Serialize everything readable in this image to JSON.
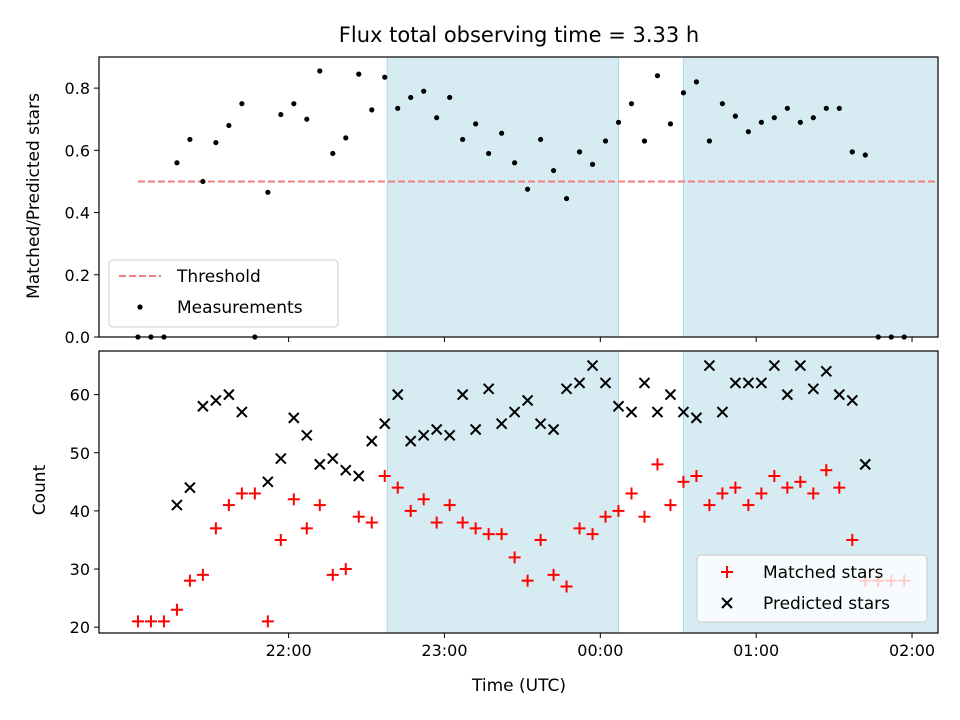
{
  "chart_data": {
    "type": "scatter",
    "title": "Flux total observing time = 3.33 h",
    "xlabel": "Time (UTC)",
    "xticks": [
      {
        "t": 1320,
        "label": "22:00"
      },
      {
        "t": 1380,
        "label": "23:00"
      },
      {
        "t": 1440,
        "label": "00:00"
      },
      {
        "t": 1500,
        "label": "01:00"
      },
      {
        "t": 1560,
        "label": "02:00"
      }
    ],
    "xlim": [
      1247,
      1570
    ],
    "shaded_spans": [
      [
        1358,
        1447
      ],
      [
        1472,
        1582
      ]
    ],
    "top_panel": {
      "ylabel": "Matched/Predicted stars",
      "ylim": [
        0,
        0.9
      ],
      "yticks": [
        "0.0",
        "0.2",
        "0.4",
        "0.6",
        "0.8"
      ],
      "legend": [
        "Threshold",
        "Measurements"
      ],
      "threshold": {
        "label": "Threshold",
        "value": 0.5,
        "x_range": [
          1262,
          1592
        ],
        "color": "#f08080"
      },
      "measurements": {
        "label": "Measurements",
        "points": [
          [
            1262,
            0
          ],
          [
            1267,
            0
          ],
          [
            1272,
            0
          ],
          [
            1277,
            0.56
          ],
          [
            1282,
            0.635
          ],
          [
            1287,
            0.5
          ],
          [
            1292,
            0.625
          ],
          [
            1297,
            0.68
          ],
          [
            1302,
            0.75
          ],
          [
            1307,
            0
          ],
          [
            1312,
            0.465
          ],
          [
            1317,
            0.715
          ],
          [
            1322,
            0.75
          ],
          [
            1327,
            0.7
          ],
          [
            1332,
            0.855
          ],
          [
            1337,
            0.59
          ],
          [
            1342,
            0.64
          ],
          [
            1347,
            0.845
          ],
          [
            1352,
            0.73
          ],
          [
            1357,
            0.835
          ],
          [
            1362,
            0.735
          ],
          [
            1367,
            0.77
          ],
          [
            1372,
            0.79
          ],
          [
            1377,
            0.705
          ],
          [
            1382,
            0.77
          ],
          [
            1387,
            0.635
          ],
          [
            1392,
            0.685
          ],
          [
            1397,
            0.59
          ],
          [
            1402,
            0.655
          ],
          [
            1407,
            0.56
          ],
          [
            1412,
            0.475
          ],
          [
            1417,
            0.635
          ],
          [
            1422,
            0.535
          ],
          [
            1427,
            0.445
          ],
          [
            1432,
            0.595
          ],
          [
            1437,
            0.555
          ],
          [
            1442,
            0.63
          ],
          [
            1447,
            0.69
          ],
          [
            1452,
            0.75
          ],
          [
            1457,
            0.63
          ],
          [
            1462,
            0.84
          ],
          [
            1467,
            0.685
          ],
          [
            1472,
            0.785
          ],
          [
            1477,
            0.82
          ],
          [
            1482,
            0.63
          ],
          [
            1487,
            0.75
          ],
          [
            1492,
            0.71
          ],
          [
            1497,
            0.66
          ],
          [
            1502,
            0.69
          ],
          [
            1507,
            0.705
          ],
          [
            1512,
            0.735
          ],
          [
            1517,
            0.69
          ],
          [
            1522,
            0.705
          ],
          [
            1527,
            0.735
          ],
          [
            1532,
            0.735
          ],
          [
            1537,
            0.595
          ],
          [
            1542,
            0.585
          ],
          [
            1547,
            0
          ],
          [
            1552,
            0
          ],
          [
            1557,
            0
          ]
        ]
      }
    },
    "bottom_panel": {
      "ylabel": "Count",
      "ylim": [
        19,
        67.5
      ],
      "yticks": [
        "20",
        "30",
        "40",
        "50",
        "60"
      ],
      "legend": [
        "Matched stars",
        "Predicted stars"
      ],
      "matched": {
        "label": "Matched stars",
        "color": "#ff0000",
        "points": [
          [
            1262,
            21
          ],
          [
            1267,
            21
          ],
          [
            1272,
            21
          ],
          [
            1277,
            23
          ],
          [
            1282,
            28
          ],
          [
            1287,
            29
          ],
          [
            1292,
            37
          ],
          [
            1297,
            41
          ],
          [
            1302,
            43
          ],
          [
            1307,
            43
          ],
          [
            1312,
            21
          ],
          [
            1317,
            35
          ],
          [
            1322,
            42
          ],
          [
            1327,
            37
          ],
          [
            1332,
            41
          ],
          [
            1337,
            29
          ],
          [
            1342,
            30
          ],
          [
            1347,
            39
          ],
          [
            1352,
            38
          ],
          [
            1357,
            46
          ],
          [
            1362,
            44
          ],
          [
            1367,
            40
          ],
          [
            1372,
            42
          ],
          [
            1377,
            38
          ],
          [
            1382,
            41
          ],
          [
            1387,
            38
          ],
          [
            1392,
            37
          ],
          [
            1397,
            36
          ],
          [
            1402,
            36
          ],
          [
            1407,
            32
          ],
          [
            1412,
            28
          ],
          [
            1417,
            35
          ],
          [
            1422,
            29
          ],
          [
            1427,
            27
          ],
          [
            1432,
            37
          ],
          [
            1437,
            36
          ],
          [
            1442,
            39
          ],
          [
            1447,
            40
          ],
          [
            1452,
            43
          ],
          [
            1457,
            39
          ],
          [
            1462,
            48
          ],
          [
            1467,
            41
          ],
          [
            1472,
            45
          ],
          [
            1477,
            46
          ],
          [
            1482,
            41
          ],
          [
            1487,
            43
          ],
          [
            1492,
            44
          ],
          [
            1497,
            41
          ],
          [
            1502,
            43
          ],
          [
            1507,
            46
          ],
          [
            1512,
            44
          ],
          [
            1517,
            45
          ],
          [
            1522,
            43
          ],
          [
            1527,
            47
          ],
          [
            1532,
            44
          ],
          [
            1537,
            35
          ],
          [
            1542,
            28
          ],
          [
            1547,
            28
          ],
          [
            1552,
            28
          ],
          [
            1557,
            28
          ]
        ]
      },
      "predicted": {
        "label": "Predicted stars",
        "color": "#000000",
        "points": [
          [
            1277,
            41
          ],
          [
            1282,
            44
          ],
          [
            1287,
            58
          ],
          [
            1292,
            59
          ],
          [
            1297,
            60
          ],
          [
            1302,
            57
          ],
          [
            1312,
            45
          ],
          [
            1317,
            49
          ],
          [
            1322,
            56
          ],
          [
            1327,
            53
          ],
          [
            1332,
            48
          ],
          [
            1337,
            49
          ],
          [
            1342,
            47
          ],
          [
            1347,
            46
          ],
          [
            1352,
            52
          ],
          [
            1357,
            55
          ],
          [
            1362,
            60
          ],
          [
            1367,
            52
          ],
          [
            1372,
            53
          ],
          [
            1377,
            54
          ],
          [
            1382,
            53
          ],
          [
            1387,
            60
          ],
          [
            1392,
            54
          ],
          [
            1397,
            61
          ],
          [
            1402,
            55
          ],
          [
            1407,
            57
          ],
          [
            1412,
            59
          ],
          [
            1417,
            55
          ],
          [
            1422,
            54
          ],
          [
            1427,
            61
          ],
          [
            1432,
            62
          ],
          [
            1437,
            65
          ],
          [
            1442,
            62
          ],
          [
            1447,
            58
          ],
          [
            1452,
            57
          ],
          [
            1457,
            62
          ],
          [
            1462,
            57
          ],
          [
            1467,
            60
          ],
          [
            1472,
            57
          ],
          [
            1477,
            56
          ],
          [
            1482,
            65
          ],
          [
            1487,
            57
          ],
          [
            1492,
            62
          ],
          [
            1497,
            62
          ],
          [
            1502,
            62
          ],
          [
            1507,
            65
          ],
          [
            1512,
            60
          ],
          [
            1517,
            65
          ],
          [
            1522,
            61
          ],
          [
            1527,
            64
          ],
          [
            1532,
            60
          ],
          [
            1537,
            59
          ],
          [
            1542,
            48
          ]
        ]
      }
    }
  }
}
